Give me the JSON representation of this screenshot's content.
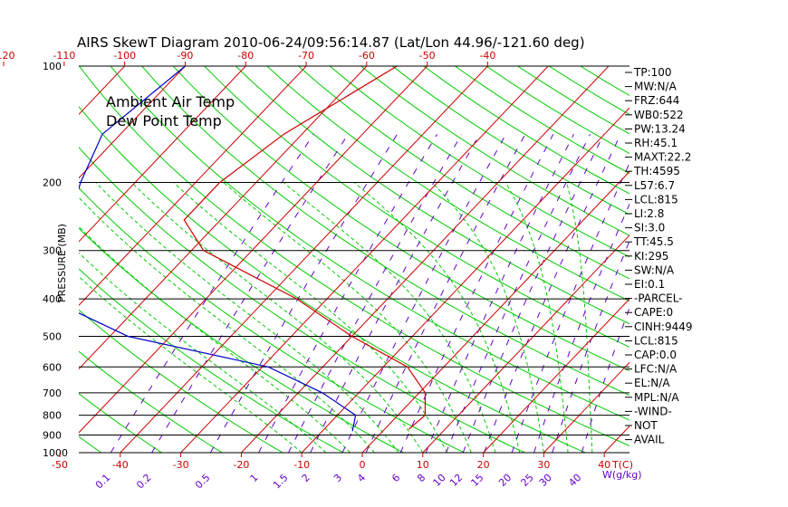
{
  "title": "AIRS SkewT Diagram 2010-06-24/09:56:14.87 (Lat/Lon 44.96/-121.60 deg)",
  "colors": {
    "air": "#cc0000",
    "dew": "#0000cc",
    "isotherm": "#cc0000",
    "dryadiabat": "#00cc00",
    "moistadiabat": "#00cc00",
    "mixing": "#6600cc",
    "pressure": "#000000"
  },
  "legend": {
    "air": "Ambient Air Temp",
    "dew": "Dew Point Temp"
  },
  "indices": [
    "TP:100",
    "MW:N/A",
    "FRZ:644",
    "WB0:522",
    "PW:13.24",
    "RH:45.1",
    "MAXT:22.2",
    "TH:4595",
    "L57:6.7",
    "LCL:815",
    "LI:2.8",
    "SI:3.0",
    "TT:45.5",
    "KI:295",
    "SW:N/A",
    "EI:0.1",
    "-PARCEL-",
    "CAPE:0",
    "CINH:9449",
    "LCL:815",
    "CAP:0.0",
    "LFC:N/A",
    "EL:N/A",
    "MPL:N/A",
    "-WIND-",
    "NOT",
    "AVAIL"
  ],
  "chart_data": {
    "type": "line",
    "title": "AIRS SkewT Diagram 2010-06-24/09:56:14.87 (Lat/Lon 44.96/-121.60 deg)",
    "ylabel": "PRESSURE (MB)",
    "xlabel": "T(C)",
    "mixing_label": "W(g/kg)",
    "y_scale": "log",
    "ylim": [
      1000,
      100
    ],
    "xlim_bottom": [
      -52,
      50
    ],
    "pressure_ticks": [
      100,
      200,
      300,
      400,
      500,
      600,
      700,
      800,
      900,
      1000
    ],
    "top_ticks": [
      -120,
      -110,
      -100,
      -90,
      -80,
      -70,
      -60,
      -50,
      -40
    ],
    "bottom_ticks": [
      -50,
      -40,
      -30,
      -20,
      -10,
      0,
      10,
      20,
      30,
      40
    ],
    "mixing_ratios": [
      "0.1",
      "0.2",
      "0.5",
      "1",
      "1.5",
      "2",
      "3",
      "4",
      "6",
      "8",
      "10",
      "12",
      "15",
      "20",
      "25",
      "30",
      "40"
    ],
    "series": [
      {
        "name": "Ambient Air Temp",
        "pressure": [
          100,
          150,
          200,
          250,
          300,
          400,
          500,
          600,
          700,
          800,
          870
        ],
        "temperature": [
          -55,
          -63,
          -66,
          -66,
          -58,
          -35,
          -20,
          -6,
          1,
          4.5,
          4
        ]
      },
      {
        "name": "Dew Point Temp",
        "pressure": [
          100,
          150,
          200,
          250,
          300,
          400,
          500,
          600,
          700,
          800,
          880
        ],
        "temperature": [
          -90,
          -93,
          -89,
          -85,
          -86,
          -76,
          -57,
          -29,
          -16,
          -7,
          -5
        ]
      }
    ]
  }
}
